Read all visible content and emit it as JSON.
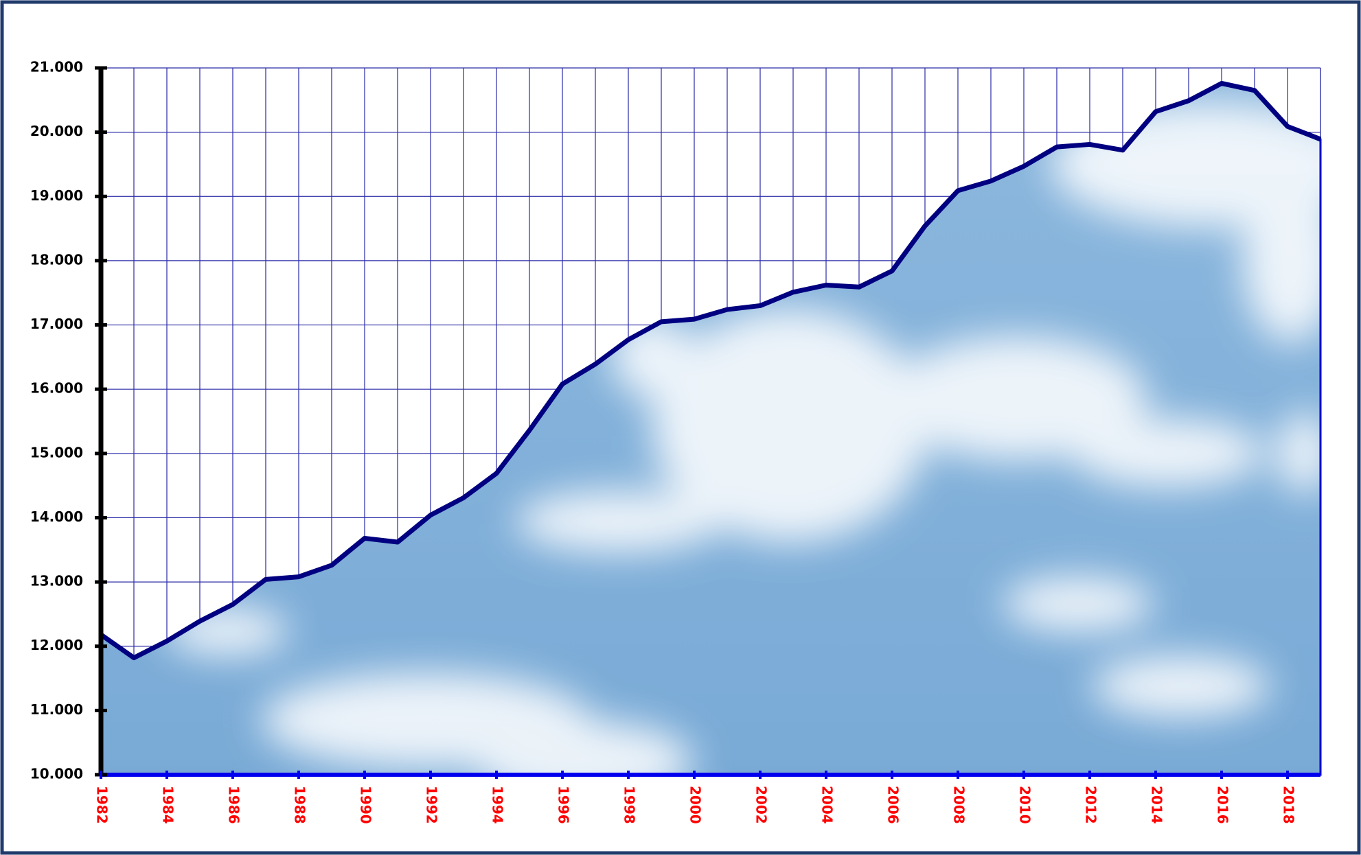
{
  "chart_data": {
    "type": "area",
    "x": [
      1982,
      1983,
      1984,
      1985,
      1986,
      1987,
      1988,
      1989,
      1990,
      1991,
      1992,
      1993,
      1994,
      1995,
      1996,
      1997,
      1998,
      1999,
      2000,
      2001,
      2002,
      2003,
      2004,
      2005,
      2006,
      2007,
      2008,
      2009,
      2010,
      2011,
      2012,
      2013,
      2014,
      2015,
      2016,
      2017,
      2018,
      2019
    ],
    "values": [
      12180,
      11820,
      12080,
      12390,
      12650,
      13040,
      13080,
      13260,
      13680,
      13620,
      14040,
      14310,
      14690,
      15360,
      16080,
      16390,
      16770,
      17050,
      17090,
      17240,
      17300,
      17510,
      17620,
      17590,
      17840,
      18540,
      19090,
      19240,
      19470,
      19770,
      19810,
      19720,
      20320,
      20490,
      20760,
      20650,
      20090,
      19890
    ],
    "color": "#000080",
    "xlim": [
      1982,
      2019
    ],
    "xticks": [
      1982,
      1984,
      1986,
      1988,
      1990,
      1992,
      1994,
      1996,
      1998,
      2000,
      2002,
      2004,
      2006,
      2008,
      2010,
      2012,
      2014,
      2016,
      2018
    ],
    "ylim": [
      10000,
      21000
    ],
    "yticks": [
      {
        "value": 10000,
        "label": "10.000"
      },
      {
        "value": 11000,
        "label": "11.000"
      },
      {
        "value": 12000,
        "label": "12.000"
      },
      {
        "value": 13000,
        "label": "13.000"
      },
      {
        "value": 14000,
        "label": "14.000"
      },
      {
        "value": 15000,
        "label": "15.000"
      },
      {
        "value": 16000,
        "label": "16.000"
      },
      {
        "value": 17000,
        "label": "17.000"
      },
      {
        "value": 18000,
        "label": "18.000"
      },
      {
        "value": 19000,
        "label": "19.000"
      },
      {
        "value": 20000,
        "label": "20.000"
      },
      {
        "value": 21000,
        "label": "21.000"
      }
    ],
    "grid": true
  }
}
